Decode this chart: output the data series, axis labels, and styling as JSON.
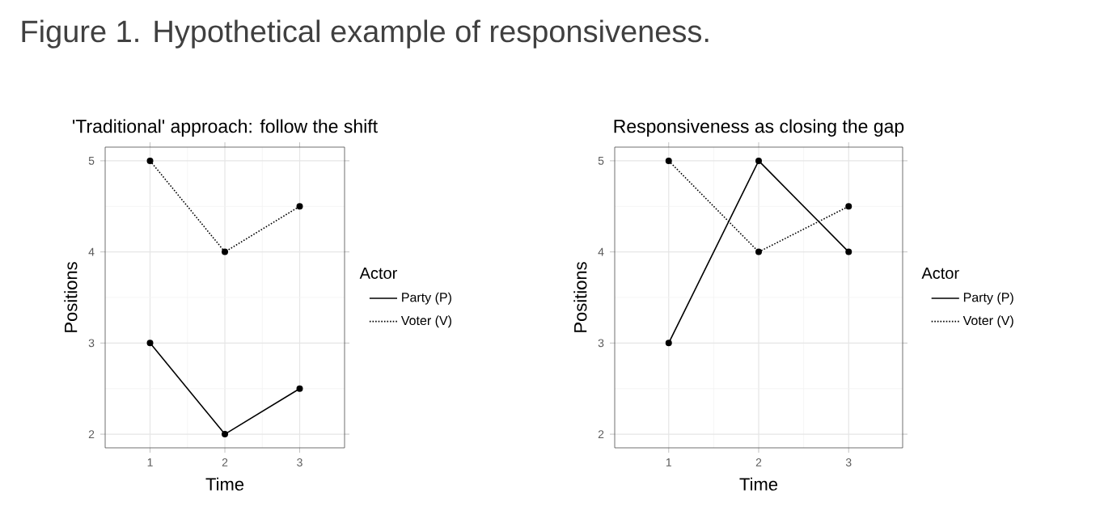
{
  "chart_data": [
    {
      "type": "line",
      "title": "'Traditional' approach: follow the shift",
      "xlabel": "Time",
      "ylabel": "Positions",
      "legend_title": "Actor",
      "annotations": [
        "Figure 1. Hypothetical example of responsiveness."
      ],
      "x": [
        1,
        2,
        3
      ],
      "xlim": [
        0.4,
        3.6
      ],
      "xticks": [
        1,
        2,
        3
      ],
      "ylim": [
        1.85,
        5.15
      ],
      "yticks": [
        2,
        3,
        4,
        5
      ],
      "grid": true,
      "legend": "right",
      "marker": "circle",
      "series": [
        {
          "name": "Party (P)",
          "color": "#000000",
          "line_style": "solid",
          "values": [
            3,
            2,
            2.5
          ]
        },
        {
          "name": "Voter (V)",
          "color": "#000000",
          "line_style": "dotted",
          "values": [
            5,
            4,
            4.5
          ]
        }
      ]
    },
    {
      "type": "line",
      "title": "Responsiveness as closing the gap",
      "xlabel": "Time",
      "ylabel": "Positions",
      "legend_title": "Actor",
      "x": [
        1,
        2,
        3
      ],
      "xlim": [
        0.4,
        3.6
      ],
      "xticks": [
        1,
        2,
        3
      ],
      "ylim": [
        1.85,
        5.15
      ],
      "yticks": [
        2,
        3,
        4,
        5
      ],
      "grid": true,
      "legend": "right",
      "marker": "circle",
      "series": [
        {
          "name": "Party (P)",
          "color": "#000000",
          "line_style": "solid",
          "values": [
            3,
            5,
            4
          ]
        },
        {
          "name": "Voter (V)",
          "color": "#000000",
          "line_style": "dotted",
          "values": [
            5,
            4,
            4.5
          ]
        }
      ]
    }
  ]
}
